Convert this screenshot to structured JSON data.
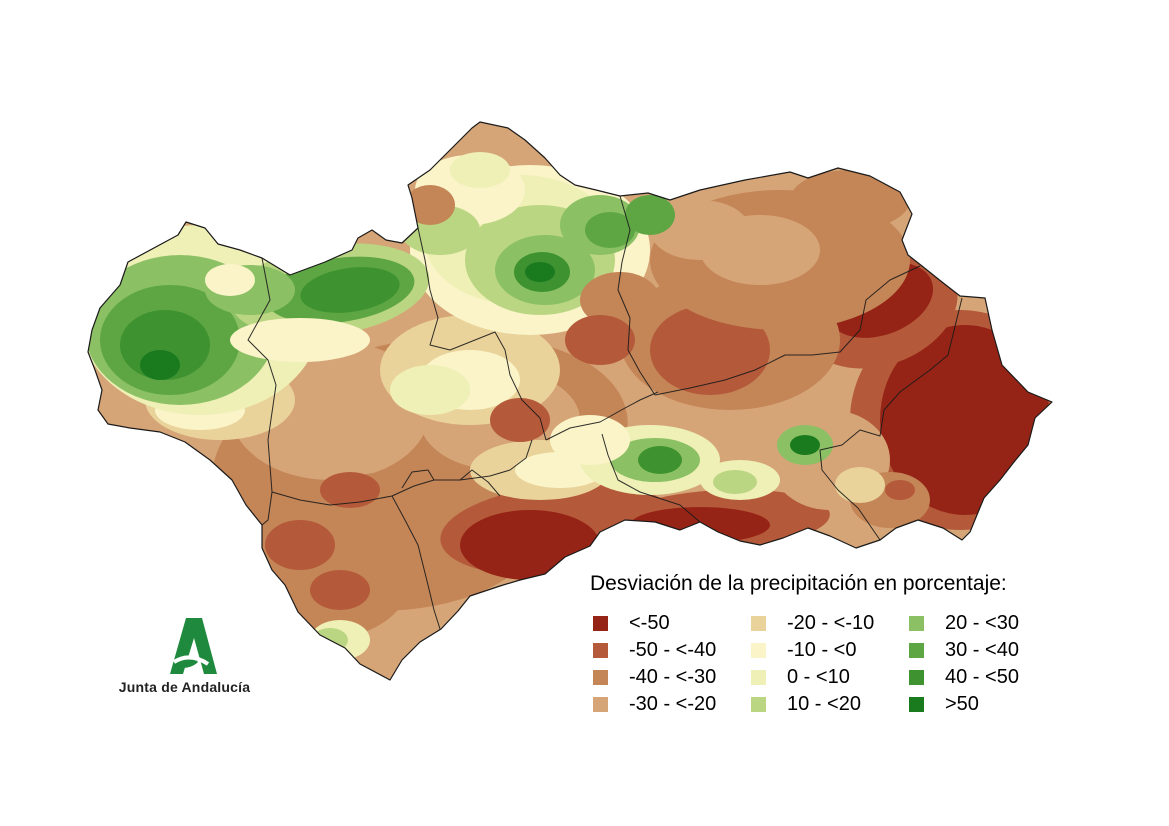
{
  "legend": {
    "title": "Desviación de la precipitación en porcentaje:",
    "classes": [
      {
        "label": "<-50",
        "color": "#962416"
      },
      {
        "label": "-50 - <-40",
        "color": "#B45A3A"
      },
      {
        "label": "-40 - <-30",
        "color": "#C48557"
      },
      {
        "label": "-30 - <-20",
        "color": "#D6A577"
      },
      {
        "label": "-20 - <-10",
        "color": "#EAD39B"
      },
      {
        "label": "-10 - <0",
        "color": "#FAF4C8"
      },
      {
        "label": "0 - <10",
        "color": "#EEF0B6"
      },
      {
        "label": "10 - <20",
        "color": "#BBD682"
      },
      {
        "label": "20 - <30",
        "color": "#8CC065"
      },
      {
        "label": "30 - <40",
        "color": "#5EA644"
      },
      {
        "label": "40 - <50",
        "color": "#3E9230"
      },
      {
        "label": ">50",
        "color": "#1A7A1E"
      }
    ]
  },
  "logo": {
    "text": "Junta de Andalucía",
    "color": "#1F8A3E"
  },
  "boundary_color": "#1a1a1a"
}
